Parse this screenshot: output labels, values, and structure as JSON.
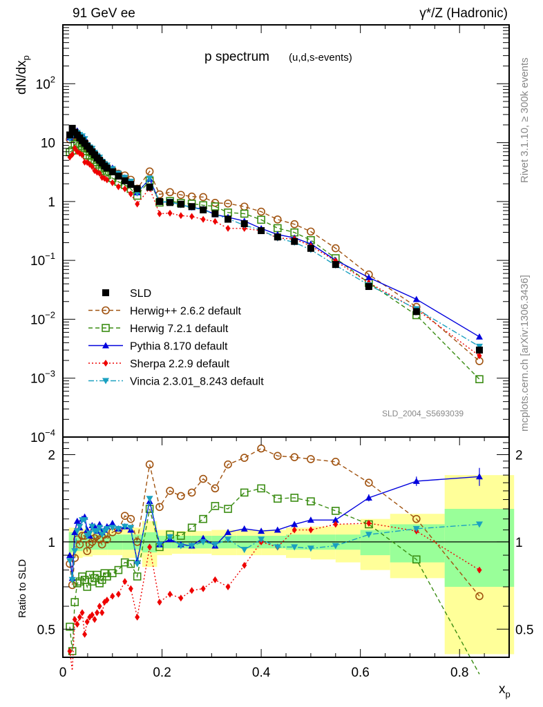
{
  "chart_data": {
    "type": "scatter",
    "header_left": "91 GeV ee",
    "header_right": "γ*/Z (Hadronic)",
    "title_main": "p spectrum",
    "title_sub": "(u,d,s-events)",
    "side_label_top": "Rivet 3.1.10, ≥ 300k events",
    "side_label_bottom": "mcplots.cern.ch [arXiv:1306.3436]",
    "analysis_tag": "SLD_2004_S5693039",
    "ylabel_top": "dN/dx",
    "ylabel_top_sub": "p",
    "ylabel_bottom": "Ratio to SLD",
    "xlabel": "x",
    "xlabel_sub": "p",
    "xlim": [
      0,
      0.9
    ],
    "ylim_top": [
      0.0001,
      1000
    ],
    "ylim_bottom": [
      0.4,
      2.3
    ],
    "yscale_top": "log",
    "yscale_bottom": "log",
    "xticks": [
      "0",
      "0.2",
      "0.4",
      "0.6",
      "0.8"
    ],
    "yticks_top": [
      {
        "base": "10",
        "exp": "2"
      },
      {
        "base": "10",
        "exp": ""
      },
      {
        "base": "1",
        "exp": ""
      },
      {
        "base": "10",
        "exp": "−1"
      },
      {
        "base": "10",
        "exp": "−2"
      },
      {
        "base": "10",
        "exp": "−3"
      },
      {
        "base": "10",
        "exp": "−4"
      }
    ],
    "yticks_bottom": [
      "2",
      "1",
      "0.5"
    ],
    "legend_position": "lower-left",
    "x": [
      0.014,
      0.019,
      0.024,
      0.029,
      0.034,
      0.039,
      0.044,
      0.049,
      0.054,
      0.059,
      0.064,
      0.069,
      0.074,
      0.079,
      0.084,
      0.089,
      0.1,
      0.112,
      0.125,
      0.137,
      0.15,
      0.175,
      0.195,
      0.216,
      0.238,
      0.26,
      0.283,
      0.307,
      0.333,
      0.366,
      0.4,
      0.433,
      0.467,
      0.5,
      0.55,
      0.617,
      0.713,
      0.84
    ],
    "sld": [
      13.5,
      17.5,
      15,
      13.5,
      12,
      10.8,
      9.7,
      8.7,
      7.8,
      7.0,
      6.2,
      5.5,
      5.0,
      4.5,
      4.0,
      3.7,
      3.2,
      2.7,
      2.25,
      1.95,
      1.65,
      1.75,
      1.0,
      0.96,
      0.9,
      0.82,
      0.72,
      0.62,
      0.5,
      0.42,
      0.32,
      0.25,
      0.21,
      0.16,
      0.085,
      0.036,
      0.0135,
      0.003
    ],
    "series": [
      {
        "name": "Herwig++ 2.6.2 default",
        "color": "#a0520f",
        "marker": "circle-open",
        "dash": "6,4",
        "ratio": [
          0.84,
          0.71,
          0.88,
          1.02,
          0.98,
          1.05,
          1.05,
          0.93,
          0.98,
          1.0,
          1.03,
          1.05,
          1.02,
          0.98,
          1.06,
          1.02,
          1.08,
          1.1,
          1.23,
          1.2,
          1.0,
          1.85,
          1.32,
          1.5,
          1.44,
          1.48,
          1.65,
          1.53,
          1.85,
          1.95,
          2.1,
          1.98,
          1.96,
          1.93,
          1.89,
          1.6,
          1.2,
          0.65
        ]
      },
      {
        "name": "Herwig 7.2.1 default",
        "color": "#3a8c12",
        "marker": "square-open",
        "dash": "6,4",
        "ratio": [
          0.51,
          0.42,
          0.62,
          0.72,
          0.73,
          0.76,
          0.74,
          0.7,
          0.77,
          0.73,
          0.75,
          0.77,
          0.72,
          0.74,
          0.78,
          0.76,
          0.78,
          0.8,
          0.85,
          0.84,
          0.76,
          1.3,
          0.96,
          1.06,
          1.05,
          1.12,
          1.2,
          1.33,
          1.3,
          1.48,
          1.53,
          1.41,
          1.42,
          1.38,
          1.28,
          1.15,
          0.87,
          0.32
        ]
      },
      {
        "name": "Pythia 8.170 default",
        "color": "#0000dd",
        "marker": "triangle-up",
        "dash": "",
        "ratio": [
          0.9,
          0.75,
          1.08,
          1.18,
          1.12,
          1.2,
          1.22,
          1.1,
          1.05,
          1.14,
          1.13,
          1.09,
          1.15,
          1.08,
          1.1,
          1.13,
          1.16,
          1.11,
          1.13,
          1.1,
          0.86,
          1.38,
          0.98,
          1.02,
          0.98,
          0.97,
          1.03,
          0.97,
          1.08,
          1.11,
          1.09,
          1.1,
          1.15,
          1.19,
          1.19,
          1.42,
          1.62,
          1.68
        ]
      },
      {
        "name": "Sherpa 2.2.9 default",
        "color": "#ee0000",
        "marker": "diamond",
        "dash": "2,3",
        "ratio": [
          0.42,
          0.36,
          0.54,
          0.52,
          0.55,
          0.57,
          0.48,
          0.53,
          0.55,
          0.56,
          0.54,
          0.57,
          0.6,
          0.57,
          0.62,
          0.63,
          0.65,
          0.66,
          0.73,
          0.69,
          0.55,
          0.96,
          0.62,
          0.66,
          0.64,
          0.68,
          0.69,
          0.74,
          0.7,
          0.83,
          1.0,
          0.96,
          1.1,
          1.1,
          1.15,
          1.16,
          1.09,
          0.8
        ]
      },
      {
        "name": "Vincia 2.3.01_8.243 default",
        "color": "#1aa0c0",
        "marker": "triangle-down",
        "dash": "8,3,2,3",
        "ratio": [
          0.86,
          0.74,
          0.93,
          1.09,
          1.13,
          1.19,
          1.19,
          1.05,
          1.07,
          1.13,
          1.09,
          1.09,
          1.12,
          1.06,
          1.09,
          1.11,
          1.12,
          1.11,
          1.13,
          1.12,
          0.84,
          1.41,
          0.98,
          1.04,
          0.97,
          0.97,
          1.0,
          0.98,
          1.02,
          0.94,
          1.02,
          0.96,
          0.96,
          0.95,
          0.97,
          1.06,
          1.11,
          1.15
        ]
      }
    ],
    "ratio_errors": {
      "Pythia 8.170 default": [
        0,
        0,
        0,
        0,
        0,
        0,
        0,
        0,
        0,
        0,
        0,
        0,
        0,
        0,
        0,
        0,
        0,
        0,
        0,
        0,
        0,
        0,
        0,
        0,
        0,
        0,
        0,
        0,
        0,
        0.02,
        0.02,
        0.02,
        0.02,
        0.02,
        0.02,
        0.04,
        0.06,
        0.12
      ]
    },
    "data_bands": {
      "edges": [
        0.012,
        0.02,
        0.04,
        0.06,
        0.09,
        0.12,
        0.16,
        0.19,
        0.22,
        0.26,
        0.3,
        0.35,
        0.4,
        0.45,
        0.5,
        0.55,
        0.6,
        0.66,
        0.77,
        0.91
      ],
      "inner": [
        0.08,
        0.07,
        0.06,
        0.06,
        0.06,
        0.06,
        0.08,
        0.05,
        0.05,
        0.05,
        0.05,
        0.05,
        0.05,
        0.06,
        0.06,
        0.06,
        0.1,
        0.15,
        0.3
      ],
      "outer": [
        0.12,
        0.12,
        0.11,
        0.1,
        0.1,
        0.12,
        0.18,
        0.1,
        0.09,
        0.09,
        0.1,
        0.1,
        0.1,
        0.12,
        0.13,
        0.15,
        0.2,
        0.25,
        0.7
      ]
    }
  }
}
